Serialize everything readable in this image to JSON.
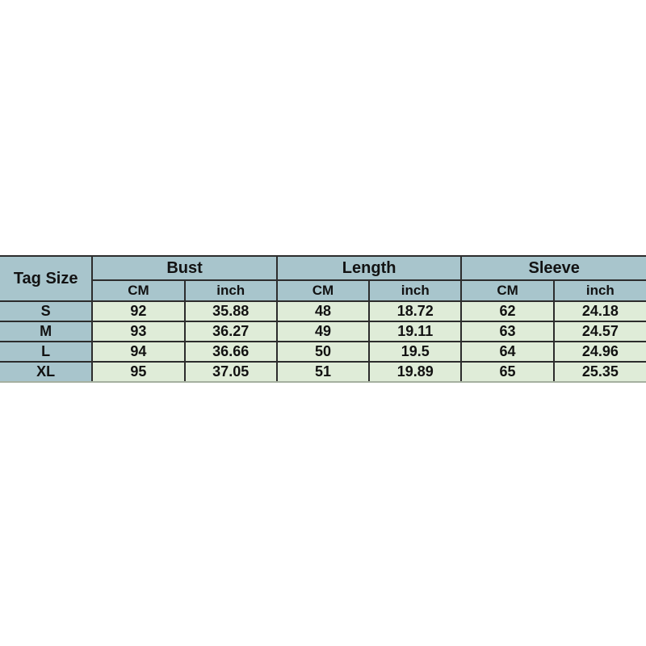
{
  "page": {
    "background_color": "#ffffff"
  },
  "chart_data": {
    "type": "table",
    "title": "",
    "corner_label": "Tag Size",
    "column_groups": [
      {
        "label": "Bust",
        "units": [
          "CM",
          "inch"
        ]
      },
      {
        "label": "Length",
        "units": [
          "CM",
          "inch"
        ]
      },
      {
        "label": "Sleeve",
        "units": [
          "CM",
          "inch"
        ]
      }
    ],
    "columns": [
      "Tag Size",
      "Bust CM",
      "Bust inch",
      "Length CM",
      "Length inch",
      "Sleeve CM",
      "Sleeve inch"
    ],
    "rows": [
      [
        "S",
        92,
        35.88,
        48,
        18.72,
        62,
        24.18
      ],
      [
        "M",
        93,
        36.27,
        49,
        19.11,
        63,
        24.57
      ],
      [
        "L",
        94,
        36.66,
        50,
        19.5,
        64,
        24.96
      ],
      [
        "XL",
        95,
        37.05,
        51,
        19.89,
        65,
        25.35
      ]
    ]
  },
  "colors": {
    "header_background": "#a8c5cc",
    "size_column_background": "#a8c5cc",
    "value_cell_background": "#dfecd8",
    "border": "#2c2c2c",
    "bottom_edge": "#a5b0a0",
    "text": "#121212"
  }
}
